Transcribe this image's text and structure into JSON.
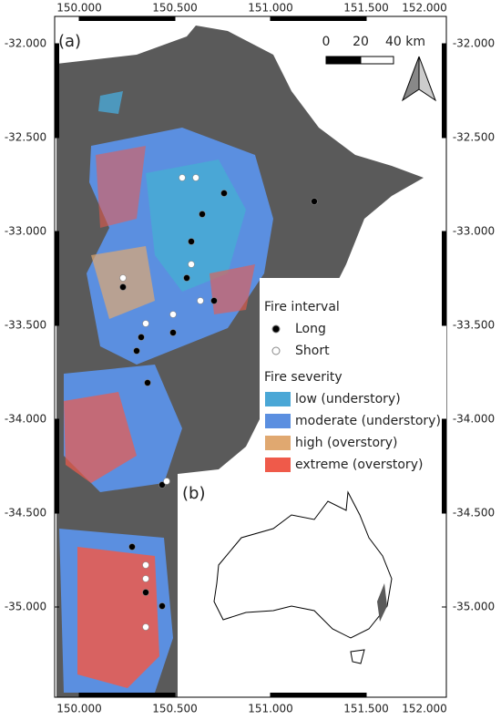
{
  "map": {
    "panel_a": "(a)",
    "panel_b": "(b)",
    "xticks": [
      {
        "value": 150,
        "label": "150.000"
      },
      {
        "value": 150.5,
        "label": "150.500"
      },
      {
        "value": 151,
        "label": "151.000"
      },
      {
        "value": 151.5,
        "label": "151.500"
      },
      {
        "value": 152,
        "label": "152.000"
      }
    ],
    "yticks": [
      {
        "value": -32,
        "label": "-32.000"
      },
      {
        "value": -32.5,
        "label": "-32.500"
      },
      {
        "value": -33,
        "label": "-33.000"
      },
      {
        "value": -33.5,
        "label": "-33.500"
      },
      {
        "value": -34,
        "label": "-34.000"
      },
      {
        "value": -34.5,
        "label": "-34.500"
      },
      {
        "value": -35,
        "label": "-35.000"
      }
    ],
    "scale_bar": {
      "labels": [
        "0",
        "20",
        "40 km"
      ]
    },
    "legend": {
      "interval_title": "Fire interval",
      "interval": [
        {
          "name": "Long",
          "color": "#000000"
        },
        {
          "name": "Short",
          "color": "#ffffff"
        }
      ],
      "severity_title": "Fire severity",
      "severity": [
        {
          "name": "low (understory)",
          "color": "#4aa7d6"
        },
        {
          "name": "moderate (understory)",
          "color": "#5b8fe0"
        },
        {
          "name": "high (overstory)",
          "color": "#e0a870"
        },
        {
          "name": "extreme (overstory)",
          "color": "#ef5a4a"
        }
      ]
    }
  }
}
